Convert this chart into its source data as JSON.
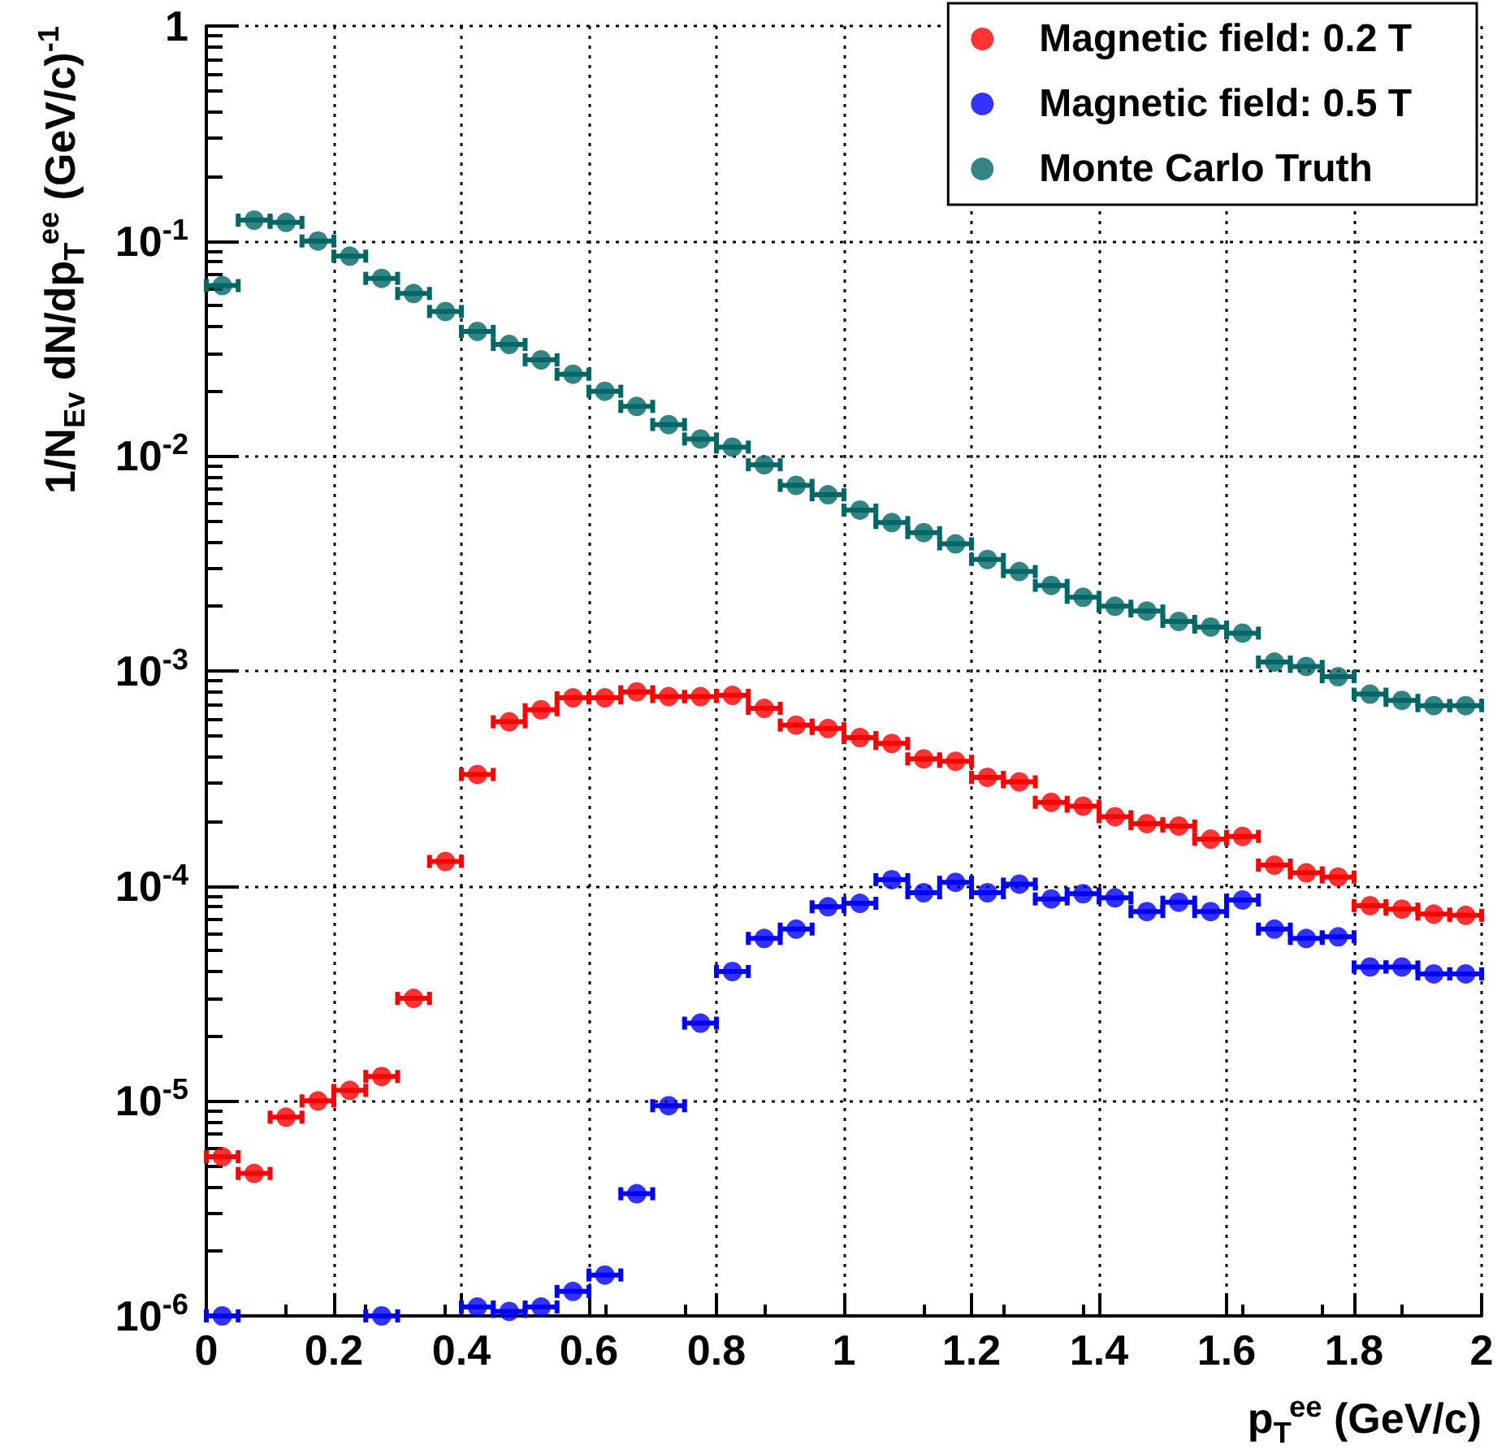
{
  "chart_data": {
    "type": "scatter",
    "xlabel": "p$_{T}$$^{ee}$ (GeV/c)",
    "ylabel": "1/N$_{Ev}$ dN/dp$_{T}$$^{ee}$ (GeV/c)$^{-1}$",
    "x": [
      0.025,
      0.075,
      0.125,
      0.175,
      0.225,
      0.275,
      0.325,
      0.375,
      0.425,
      0.475,
      0.525,
      0.575,
      0.625,
      0.675,
      0.725,
      0.775,
      0.825,
      0.875,
      0.925,
      0.975,
      1.025,
      1.075,
      1.125,
      1.175,
      1.225,
      1.275,
      1.325,
      1.375,
      1.425,
      1.475,
      1.525,
      1.575,
      1.625,
      1.675,
      1.725,
      1.775,
      1.825,
      1.875,
      1.925,
      1.975
    ],
    "series": [
      {
        "name": "Magnetic field: 0.2 T",
        "color": "#ff0000",
        "values": [
          5.5e-06,
          4.6e-06,
          8.4e-06,
          1e-05,
          1.12e-05,
          1.3e-05,
          3e-05,
          0.00013,
          0.00033,
          0.00058,
          0.00066,
          0.00075,
          0.00075,
          0.0008,
          0.00076,
          0.00076,
          0.00077,
          0.00067,
          0.00056,
          0.00054,
          0.00049,
          0.00046,
          0.00039,
          0.00038,
          0.00032,
          0.000305,
          0.000245,
          0.000235,
          0.00021,
          0.000195,
          0.00019,
          0.000165,
          0.00017,
          0.000125,
          0.000115,
          0.00011,
          8.1e-05,
          7.8e-05,
          7.4e-05,
          7.3e-05
        ],
        "xerrors": [
          0.025,
          0.025,
          0.025,
          0.025,
          0.025,
          0.025,
          0.025,
          0.025,
          0.025,
          0.025,
          0.025,
          0.025,
          0.025,
          0.025,
          0.025,
          0.025,
          0.025,
          0.025,
          0.025,
          0.025,
          0.025,
          0.025,
          0.025,
          0.025,
          0.025,
          0.025,
          0.025,
          0.025,
          0.025,
          0.025,
          0.025,
          0.025,
          0.025,
          0.025,
          0.025,
          0.025,
          0.025,
          0.025,
          0.025,
          0.025
        ]
      },
      {
        "name": "Magnetic field: 0.5 T",
        "color": "#0000ff",
        "values": [
          1e-06,
          null,
          null,
          null,
          null,
          1e-06,
          null,
          null,
          1.1e-06,
          1.05e-06,
          1.1e-06,
          1.3e-06,
          1.55e-06,
          3.7e-06,
          9.5e-06,
          2.3e-05,
          4e-05,
          5.7e-05,
          6.3e-05,
          8e-05,
          8.3e-05,
          0.000107,
          9.3e-05,
          0.000104,
          9.3e-05,
          0.000102,
          8.7e-05,
          9.2e-05,
          8.8e-05,
          7.6e-05,
          8.4e-05,
          7.6e-05,
          8.6e-05,
          6.3e-05,
          5.7e-05,
          5.8e-05,
          4.2e-05,
          4.2e-05,
          3.9e-05,
          3.9e-05
        ],
        "xerrors": [
          0.025,
          null,
          null,
          null,
          null,
          0.025,
          null,
          null,
          0.025,
          0.025,
          0.025,
          0.025,
          0.025,
          0.025,
          0.025,
          0.025,
          0.025,
          0.025,
          0.025,
          0.025,
          0.025,
          0.025,
          0.025,
          0.025,
          0.025,
          0.025,
          0.025,
          0.025,
          0.025,
          0.025,
          0.025,
          0.025,
          0.025,
          0.025,
          0.025,
          0.025,
          0.025,
          0.025,
          0.025,
          0.025
        ]
      },
      {
        "name": "Monte Carlo Truth",
        "color": "#006666",
        "values": [
          0.062,
          0.125,
          0.122,
          0.1,
          0.085,
          0.067,
          0.057,
          0.047,
          0.038,
          0.033,
          0.028,
          0.024,
          0.02,
          0.017,
          0.014,
          0.012,
          0.011,
          0.0091,
          0.0073,
          0.0066,
          0.0056,
          0.0049,
          0.0044,
          0.0039,
          0.0033,
          0.0029,
          0.0025,
          0.0022,
          0.002,
          0.0019,
          0.0017,
          0.0016,
          0.0015,
          0.0011,
          0.00105,
          0.00094,
          0.00078,
          0.00073,
          0.00069,
          0.00069
        ],
        "xerrors": [
          0.025,
          0.025,
          0.025,
          0.025,
          0.025,
          0.025,
          0.025,
          0.025,
          0.025,
          0.025,
          0.025,
          0.025,
          0.025,
          0.025,
          0.025,
          0.025,
          0.025,
          0.025,
          0.025,
          0.025,
          0.025,
          0.025,
          0.025,
          0.025,
          0.025,
          0.025,
          0.025,
          0.025,
          0.025,
          0.025,
          0.025,
          0.025,
          0.025,
          0.025,
          0.025,
          0.025,
          0.025,
          0.025,
          0.025,
          0.025
        ]
      }
    ],
    "xlim": [
      0,
      2
    ],
    "xticks": [
      0,
      0.2,
      0.4,
      0.6,
      0.8,
      1,
      1.2,
      1.4,
      1.6,
      1.8,
      2
    ],
    "ylim": [
      1e-06,
      1
    ],
    "yticks": [
      {
        "value": 1e-06,
        "label": "10$^{-6}$"
      },
      {
        "value": 1e-05,
        "label": "10$^{-5}$"
      },
      {
        "value": 0.0001,
        "label": "10$^{-4}$"
      },
      {
        "value": 0.001,
        "label": "10$^{-3}$"
      },
      {
        "value": 0.01,
        "label": "10$^{-2}$"
      },
      {
        "value": 0.1,
        "label": "10$^{-1}$"
      },
      1
    ],
    "log": "y",
    "grid": true,
    "legend": "top right",
    "marker": "circle"
  }
}
